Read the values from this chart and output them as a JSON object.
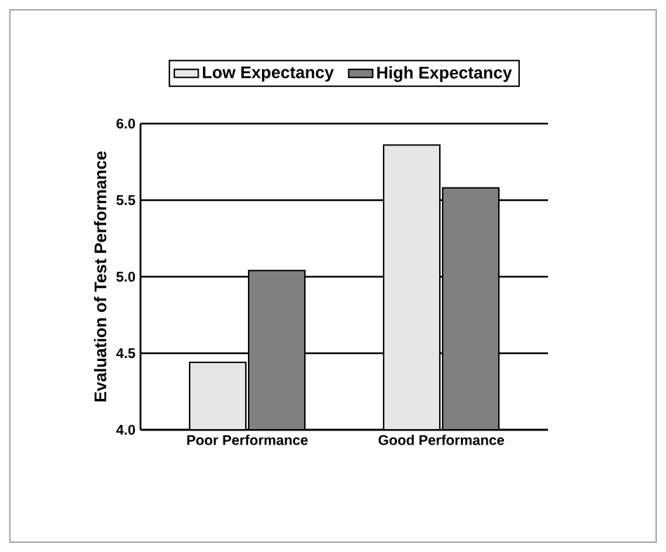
{
  "chart_data": {
    "type": "bar",
    "ylabel": "Evaluation of Test Performance",
    "categories": [
      "Poor Performance",
      "Good Performance"
    ],
    "series": [
      {
        "name": "Low Expectancy",
        "color": "#e6e6e6",
        "values": [
          4.44,
          5.86
        ]
      },
      {
        "name": "High Expectancy",
        "color": "#808080",
        "values": [
          5.04,
          5.58
        ]
      }
    ],
    "ylim": [
      4.0,
      6.0
    ],
    "yticks": [
      {
        "value": 4.0,
        "label": "4.0"
      },
      {
        "value": 4.5,
        "label": "4.5"
      },
      {
        "value": 5.0,
        "label": "5.0"
      },
      {
        "value": 5.5,
        "label": "5.5"
      },
      {
        "value": 6.0,
        "label": "6.0"
      }
    ],
    "grid": "y",
    "legend": "top"
  }
}
